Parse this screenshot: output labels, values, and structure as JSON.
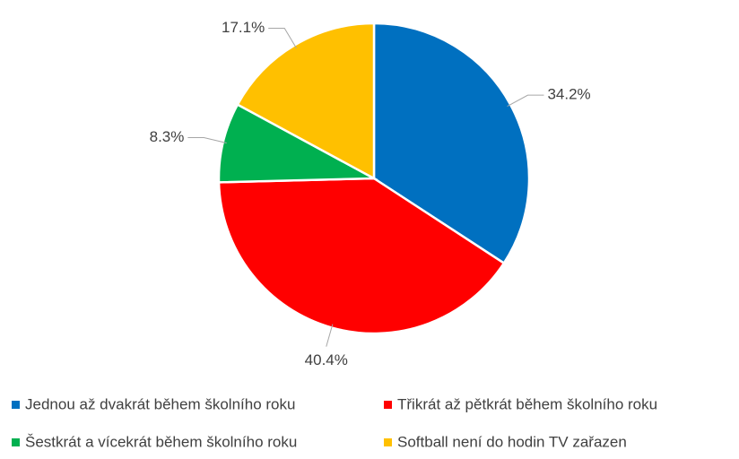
{
  "chart_data": {
    "type": "pie",
    "categories": [
      "Jednou až dvakrát během školního roku",
      "Třikrát až pětkrát během školního roku",
      "Šestkrát a vícekrát během školního roku",
      "Softball není do hodin TV zařazen"
    ],
    "values": [
      34.2,
      40.4,
      8.3,
      17.1
    ],
    "value_labels": [
      "34.2%",
      "40.4%",
      "8.3%",
      "17.1%"
    ],
    "colors": [
      "#0070c0",
      "#ff0000",
      "#00b050",
      "#ffc000"
    ],
    "legend": "bottom"
  }
}
